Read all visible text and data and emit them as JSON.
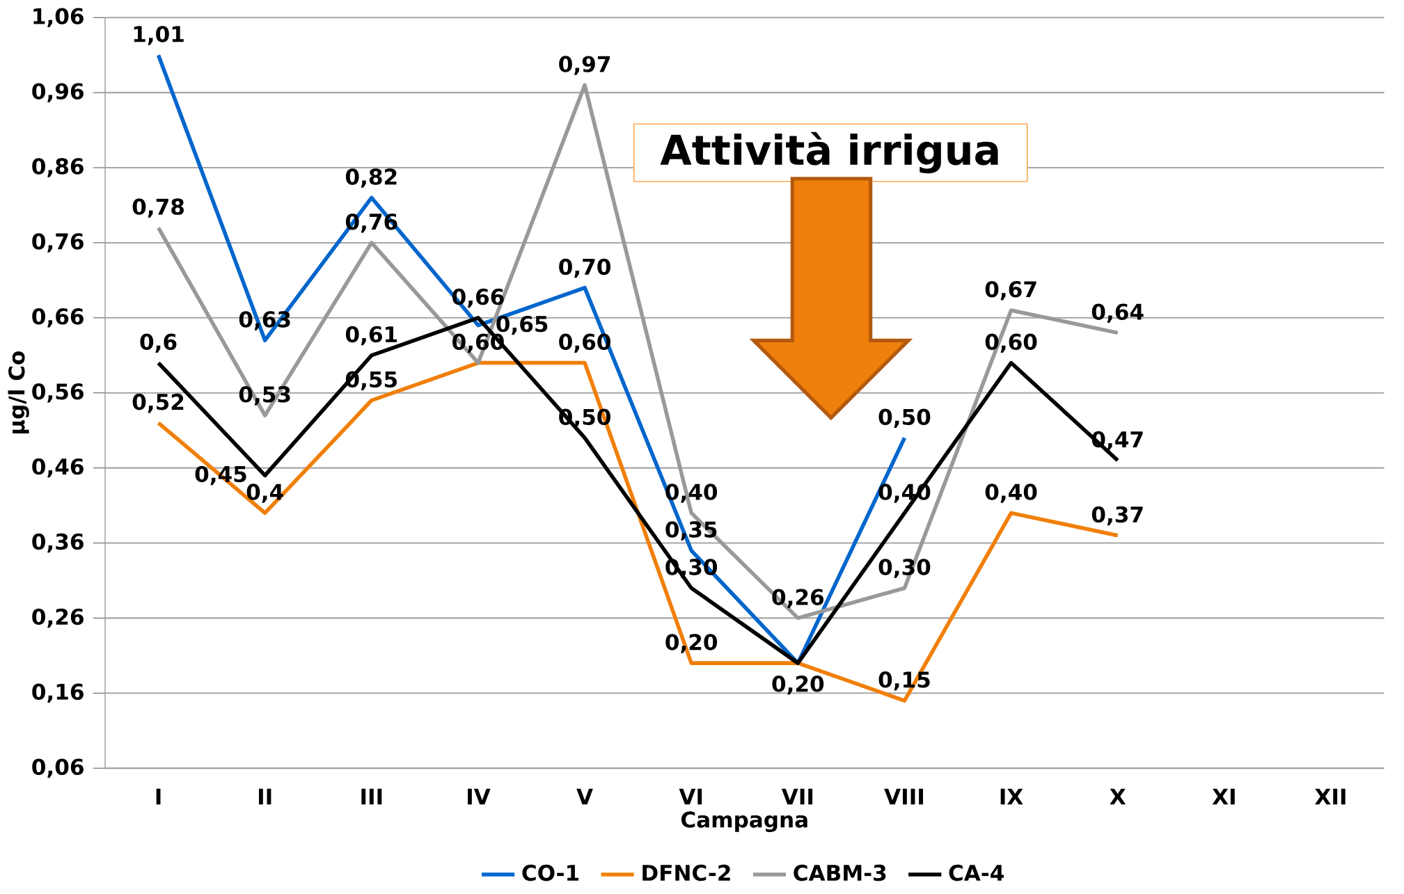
{
  "chart_data": {
    "type": "line",
    "xlabel": "Campagna",
    "ylabel": "µg/l Co",
    "categories": [
      "I",
      "II",
      "III",
      "IV",
      "V",
      "VI",
      "VII",
      "VIII",
      "IX",
      "X",
      "XI",
      "XII"
    ],
    "series": [
      {
        "name": "CO-1",
        "color": "#0066cc",
        "values": [
          1.01,
          0.63,
          0.82,
          0.65,
          0.7,
          0.35,
          0.2,
          0.5,
          null,
          null,
          null,
          null
        ],
        "value_labels": [
          "1,01",
          "0,63",
          "0,82",
          "0,65",
          "0,70",
          "0,35",
          null,
          "0,50",
          null,
          null,
          null,
          null
        ]
      },
      {
        "name": "DFNC-2",
        "color": "#f07f09",
        "values": [
          0.52,
          0.4,
          0.55,
          0.6,
          0.6,
          0.2,
          0.2,
          0.15,
          0.4,
          0.37,
          null,
          null
        ],
        "value_labels": [
          "0,52",
          "0,4",
          "0,55",
          null,
          "0,60",
          "0,20",
          null,
          "0,15",
          "0,40",
          "0,37",
          null,
          null
        ]
      },
      {
        "name": "CABM-3",
        "color": "#999999",
        "values": [
          0.78,
          0.53,
          0.76,
          0.6,
          0.97,
          0.4,
          0.26,
          0.3,
          0.67,
          0.64,
          null,
          null
        ],
        "value_labels": [
          "0,78",
          "0,53",
          "0,76",
          "0,60",
          "0,97",
          "0,40",
          "0,26",
          "0,30",
          "0,67",
          "0,64",
          null,
          null
        ]
      },
      {
        "name": "CA-4",
        "color": "#000000",
        "values": [
          0.6,
          0.45,
          0.61,
          0.66,
          0.5,
          0.3,
          0.2,
          0.4,
          0.6,
          0.47,
          null,
          null
        ],
        "value_labels": [
          "0,6",
          "0,45",
          "0,61",
          "0,66",
          "0,50",
          "0,30",
          "0,20",
          "0,40",
          "0,60",
          "0,47",
          null,
          null
        ]
      }
    ],
    "ylim": [
      0.06,
      1.06
    ],
    "yticks": [
      {
        "value": 0.06,
        "label": "0,06"
      },
      {
        "value": 0.16,
        "label": "0,16"
      },
      {
        "value": 0.26,
        "label": "0,26"
      },
      {
        "value": 0.36,
        "label": "0,36"
      },
      {
        "value": 0.46,
        "label": "0,46"
      },
      {
        "value": 0.56,
        "label": "0,56"
      },
      {
        "value": 0.66,
        "label": "0,66"
      },
      {
        "value": 0.76,
        "label": "0,76"
      },
      {
        "value": 0.86,
        "label": "0,86"
      },
      {
        "value": 0.96,
        "label": "0,96"
      },
      {
        "value": 1.06,
        "label": "1,06"
      }
    ],
    "grid": "y",
    "legend": "bottom",
    "marker": "none",
    "line_style": "solid",
    "annotations": [
      "Attività irrigua"
    ]
  }
}
